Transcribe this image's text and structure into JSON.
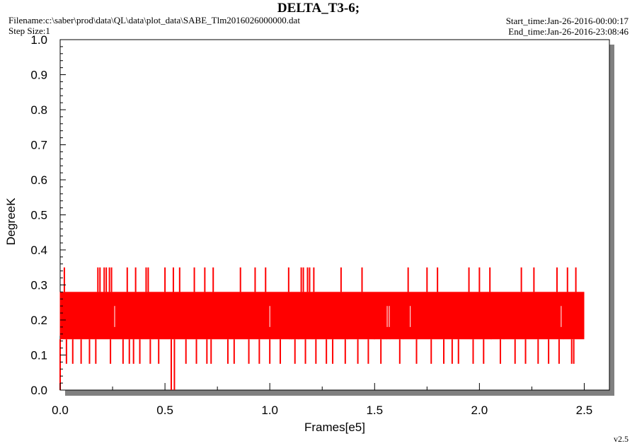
{
  "header": {
    "title": "DELTA_T3-6;",
    "filename": "Filename:c:\\saber\\prod\\data\\QL\\data\\plot_data\\SABE_Tlm2016026000000.dat",
    "step_size": "Step Size:1",
    "start_time": "Start_time:Jan-26-2016-00:00:17",
    "end_time": "End_time:Jan-26-2016-23:08:46",
    "version": "v2.5"
  },
  "chart_data": {
    "type": "line",
    "title": "DELTA_T3-6;",
    "xlabel": "Frames[e5]",
    "ylabel": "DegreeK",
    "xlim": [
      0,
      2.62
    ],
    "ylim": [
      0,
      1.0
    ],
    "x_ticks": [
      "0.0",
      "0.5",
      "1.0",
      "1.5",
      "2.0",
      "2.5"
    ],
    "y_ticks": [
      "0.0",
      "0.1",
      "0.2",
      "0.3",
      "0.4",
      "0.5",
      "0.6",
      "0.7",
      "0.8",
      "0.9",
      "1.0"
    ],
    "grid": false,
    "colors": {
      "series": "#ff0000",
      "shadow": "#808080",
      "frame": "#000000"
    },
    "series": [
      {
        "x_range": [
          0,
          2.5
        ],
        "band_low": 0.145,
        "band_high": 0.28,
        "mean": 0.21,
        "frequent_levels": [
          0.075,
          0.145,
          0.21,
          0.28
        ],
        "spikes_high": [
          {
            "x": 0.02,
            "y": 0.35
          },
          {
            "x": 0.18,
            "y": 0.35
          },
          {
            "x": 0.19,
            "y": 0.35
          },
          {
            "x": 0.21,
            "y": 0.35
          },
          {
            "x": 0.22,
            "y": 0.35
          },
          {
            "x": 0.235,
            "y": 0.35
          },
          {
            "x": 0.245,
            "y": 0.35
          },
          {
            "x": 0.32,
            "y": 0.35
          },
          {
            "x": 0.36,
            "y": 0.35
          },
          {
            "x": 0.41,
            "y": 0.35
          },
          {
            "x": 0.42,
            "y": 0.35
          },
          {
            "x": 0.5,
            "y": 0.35
          },
          {
            "x": 0.54,
            "y": 0.35
          },
          {
            "x": 0.57,
            "y": 0.35
          },
          {
            "x": 0.64,
            "y": 0.35
          },
          {
            "x": 0.69,
            "y": 0.35
          },
          {
            "x": 0.73,
            "y": 0.35
          },
          {
            "x": 0.86,
            "y": 0.35
          },
          {
            "x": 0.93,
            "y": 0.35
          },
          {
            "x": 0.98,
            "y": 0.35
          },
          {
            "x": 1.09,
            "y": 0.35
          },
          {
            "x": 1.15,
            "y": 0.35
          },
          {
            "x": 1.16,
            "y": 0.35
          },
          {
            "x": 1.18,
            "y": 0.35
          },
          {
            "x": 1.19,
            "y": 0.35
          },
          {
            "x": 1.21,
            "y": 0.35
          },
          {
            "x": 1.34,
            "y": 0.35
          },
          {
            "x": 1.44,
            "y": 0.35
          },
          {
            "x": 1.66,
            "y": 0.35
          },
          {
            "x": 1.75,
            "y": 0.35
          },
          {
            "x": 1.8,
            "y": 0.35
          },
          {
            "x": 1.95,
            "y": 0.35
          },
          {
            "x": 2.0,
            "y": 0.35
          },
          {
            "x": 2.05,
            "y": 0.35
          },
          {
            "x": 2.2,
            "y": 0.35
          },
          {
            "x": 2.26,
            "y": 0.35
          },
          {
            "x": 2.37,
            "y": 0.35
          },
          {
            "x": 2.42,
            "y": 0.35
          },
          {
            "x": 2.46,
            "y": 0.35
          }
        ],
        "spikes_low": [
          {
            "x": 0.0,
            "y": 0.0
          },
          {
            "x": 0.53,
            "y": 0.0
          },
          {
            "x": 0.545,
            "y": 0.0
          },
          {
            "x": 0.03,
            "y": 0.075
          },
          {
            "x": 0.06,
            "y": 0.075
          },
          {
            "x": 0.1,
            "y": 0.075
          },
          {
            "x": 0.14,
            "y": 0.075
          },
          {
            "x": 0.17,
            "y": 0.075
          },
          {
            "x": 0.24,
            "y": 0.075
          },
          {
            "x": 0.3,
            "y": 0.075
          },
          {
            "x": 0.33,
            "y": 0.075
          },
          {
            "x": 0.35,
            "y": 0.075
          },
          {
            "x": 0.38,
            "y": 0.075
          },
          {
            "x": 0.43,
            "y": 0.075
          },
          {
            "x": 0.47,
            "y": 0.075
          },
          {
            "x": 0.6,
            "y": 0.075
          },
          {
            "x": 0.65,
            "y": 0.075
          },
          {
            "x": 0.7,
            "y": 0.075
          },
          {
            "x": 0.72,
            "y": 0.075
          },
          {
            "x": 0.8,
            "y": 0.075
          },
          {
            "x": 0.83,
            "y": 0.075
          },
          {
            "x": 0.9,
            "y": 0.075
          },
          {
            "x": 0.95,
            "y": 0.075
          },
          {
            "x": 1.0,
            "y": 0.075
          },
          {
            "x": 1.05,
            "y": 0.075
          },
          {
            "x": 1.12,
            "y": 0.075
          },
          {
            "x": 1.17,
            "y": 0.075
          },
          {
            "x": 1.22,
            "y": 0.075
          },
          {
            "x": 1.27,
            "y": 0.075
          },
          {
            "x": 1.3,
            "y": 0.075
          },
          {
            "x": 1.36,
            "y": 0.075
          },
          {
            "x": 1.42,
            "y": 0.075
          },
          {
            "x": 1.47,
            "y": 0.075
          },
          {
            "x": 1.53,
            "y": 0.075
          },
          {
            "x": 1.62,
            "y": 0.075
          },
          {
            "x": 1.7,
            "y": 0.075
          },
          {
            "x": 1.77,
            "y": 0.075
          },
          {
            "x": 1.83,
            "y": 0.075
          },
          {
            "x": 1.87,
            "y": 0.075
          },
          {
            "x": 1.9,
            "y": 0.075
          },
          {
            "x": 1.97,
            "y": 0.075
          },
          {
            "x": 2.02,
            "y": 0.075
          },
          {
            "x": 2.1,
            "y": 0.075
          },
          {
            "x": 2.17,
            "y": 0.075
          },
          {
            "x": 2.22,
            "y": 0.075
          },
          {
            "x": 2.28,
            "y": 0.075
          },
          {
            "x": 2.33,
            "y": 0.075
          },
          {
            "x": 2.38,
            "y": 0.075
          },
          {
            "x": 2.44,
            "y": 0.075
          },
          {
            "x": 2.45,
            "y": 0.075
          }
        ]
      }
    ]
  }
}
